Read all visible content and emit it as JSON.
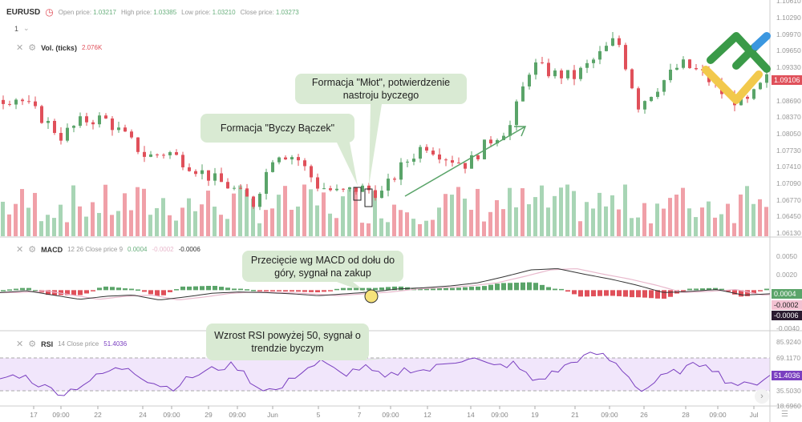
{
  "header": {
    "symbol": "EURUSD",
    "clock_icon": "clock-icon",
    "open_label": "Open price:",
    "open": "1.03217",
    "high_label": "High price:",
    "high": "1.03385",
    "low_label": "Low price:",
    "low": "1.03210",
    "close_label": "Close price:",
    "close": "1.03273",
    "interval": "1"
  },
  "volume": {
    "label": "Vol. (ticks)",
    "value": "2.076K"
  },
  "macd": {
    "label": "MACD",
    "params": "12 26 Close price 9",
    "v1": "0.0004",
    "v2": "-0.0002",
    "v3": "-0.0006"
  },
  "rsi": {
    "label": "RSI",
    "params": "14 Close price",
    "value": "51.4036"
  },
  "price_axis": [
    "1.10610",
    "1.10290",
    "1.09970",
    "1.09650",
    "1.09330",
    "1.08690",
    "1.08370",
    "1.08050",
    "1.07730",
    "1.07410",
    "1.07090",
    "1.06770",
    "1.06450",
    "1.06130"
  ],
  "current_price": "1.09106",
  "macd_axis": [
    "0.0050",
    "0.0020",
    "-0.0040"
  ],
  "rsi_axis": [
    "85.9240",
    "69.1170",
    "35.5030",
    "18.6960"
  ],
  "x_axis": [
    "17",
    "09:00",
    "22",
    "24",
    "09:00",
    "29",
    "09:00",
    "Jun",
    "5",
    "7",
    "09:00",
    "12",
    "14",
    "09:00",
    "19",
    "21",
    "09:00",
    "26",
    "28",
    "09:00",
    "Jul"
  ],
  "callouts": {
    "hammer": "Formacja \"Młot\", potwierdzenie nastroju byczego",
    "spinning_top": "Formacja \"Byczy Bączek\"",
    "macd_cross": "Przecięcie wg MACD od dołu do góry, sygnał na zakup",
    "rsi": "Wzrost RSI powyżej 50, sygnał o trendzie byczym"
  },
  "colors": {
    "up": "#5aa469",
    "down": "#e0505a",
    "vol_up": "#a8d5b5",
    "vol_down": "#f0a0a8",
    "callout": "#d9ead3",
    "rsi_band": "#f1e6fb",
    "rsi_line": "#7a3fc0",
    "macd_line": "#333333",
    "signal_line": "#e8b8cc",
    "accent_circle": "#f6e27a"
  },
  "price_path": [
    1.087,
    1.0875,
    1.084,
    1.08,
    1.083,
    1.0835,
    1.08,
    1.076,
    1.077,
    1.0745,
    1.072,
    1.07,
    1.067,
    1.077,
    1.076,
    1.0705,
    1.069,
    1.07,
    1.069,
    1.0745,
    1.0785,
    1.076,
    1.0745,
    1.079,
    1.082,
    1.094,
    1.092,
    1.0915,
    1.095,
    1.099,
    1.086,
    1.09,
    1.094,
    1.092,
    1.088,
    1.086,
    1.0911
  ],
  "macd_path": [
    -0.0004,
    -0.0001,
    -0.0008,
    -0.0015,
    -0.001,
    -0.0008,
    -0.0016,
    -0.0011,
    -0.0005,
    -0.0003,
    -0.0004,
    -0.0006,
    -0.0009,
    -0.0006,
    -0.0003,
    0.0002,
    0.0004,
    0.0007,
    0.0012,
    0.0022,
    0.0033,
    0.0035,
    0.0026,
    0.0018,
    0.0008,
    -0.0004,
    -0.0002,
    0.0001,
    -0.0008,
    -0.0006
  ],
  "rsi_path": [
    48,
    52,
    40,
    33,
    44,
    55,
    60,
    45,
    38,
    50,
    58,
    62,
    40,
    35,
    55,
    65,
    52,
    60,
    48,
    58,
    56,
    65,
    70,
    60,
    63,
    45,
    55,
    68,
    74,
    60,
    35,
    50,
    58,
    65,
    45,
    40,
    51.4
  ]
}
